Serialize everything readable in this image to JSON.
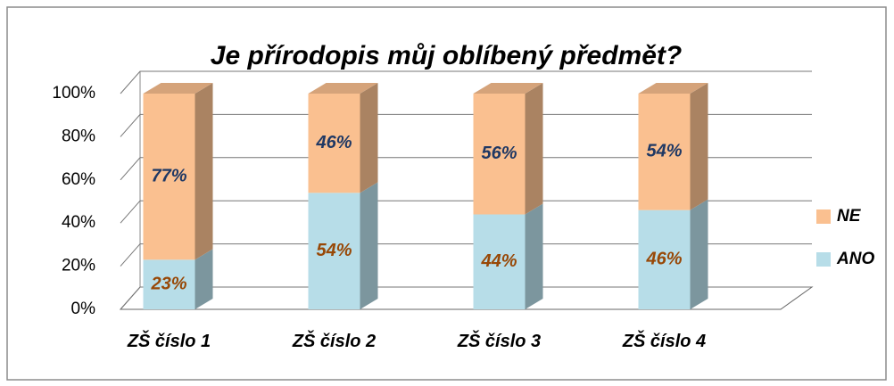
{
  "chart_data": {
    "type": "bar",
    "stacked": true,
    "three_d": true,
    "title": "Je přírodopis můj oblíbený předmět?",
    "categories": [
      "ZŠ číslo 1",
      "ZŠ číslo 2",
      "ZŠ číslo 3",
      "ZŠ číslo 4"
    ],
    "series": [
      {
        "name": "ANO",
        "color": "#b7dde8",
        "label_color": "#984807",
        "values": [
          23,
          54,
          44,
          46
        ],
        "value_labels": [
          "23%",
          "54%",
          "44%",
          "46%"
        ]
      },
      {
        "name": "NE",
        "color": "#fac090",
        "label_color": "#1f3864",
        "values": [
          77,
          46,
          56,
          54
        ],
        "value_labels": [
          "77%",
          "46%",
          "56%",
          "54%"
        ]
      }
    ],
    "ylim": [
      0,
      100
    ],
    "yticks": [
      {
        "value": 0,
        "label": "0%"
      },
      {
        "value": 20,
        "label": "20%"
      },
      {
        "value": 40,
        "label": "40%"
      },
      {
        "value": 60,
        "label": "60%"
      },
      {
        "value": 80,
        "label": "80%"
      },
      {
        "value": 100,
        "label": "100%"
      }
    ],
    "grid": true,
    "legend": "right"
  }
}
